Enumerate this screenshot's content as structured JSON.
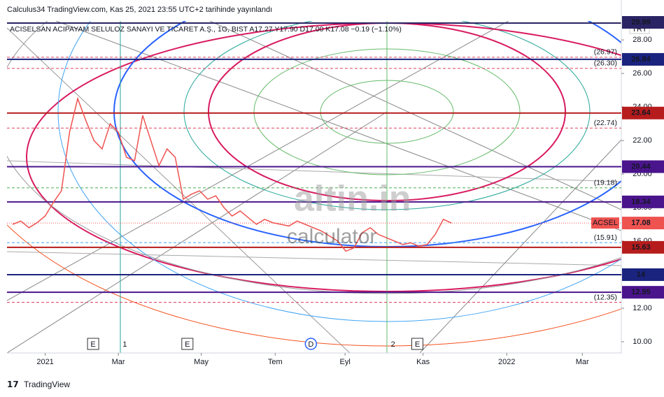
{
  "chart_data": {
    "type": "line",
    "title": "Calculus34 TradingView.com, Kas 25, 2021 23:55 UTC+2 tarihinde yayınlandı",
    "subtitle": "ACISELSAN ACIPAYAM SELULOZ SANAYI VE TICARET A.Ş., 1G, BIST  A17.27 Y17.90 D17.00 K17.08 −0.19 (−1.10%)",
    "currency": "TRY",
    "footer": "TradingView",
    "watermark": [
      "altin.in",
      "calculator"
    ],
    "x": [
      -4,
      -3,
      -2,
      -1,
      0,
      1,
      2,
      3,
      4,
      5,
      6,
      7,
      8,
      9,
      10,
      11,
      12,
      13,
      14,
      15,
      16,
      17,
      18,
      19,
      20,
      21,
      22,
      23,
      24,
      25,
      26,
      27,
      28,
      29,
      30,
      31,
      32,
      33,
      34,
      35,
      36,
      37,
      38,
      39,
      40,
      41,
      42,
      43,
      44,
      45,
      46,
      47,
      48,
      49,
      50
    ],
    "series": [
      {
        "name": "ACSEL",
        "color": "#ef5350",
        "values": [
          17.0,
          17.2,
          16.8,
          17.1,
          17.5,
          18.3,
          19.0,
          22.5,
          24.5,
          23.2,
          22.0,
          21.5,
          23.0,
          22.5,
          21.0,
          20.8,
          23.5,
          22.0,
          20.5,
          21.5,
          21.0,
          18.5,
          18.8,
          19.0,
          18.5,
          18.7,
          18.0,
          17.5,
          17.8,
          17.4,
          17.0,
          17.3,
          17.1,
          17.0,
          16.9,
          17.2,
          17.0,
          16.8,
          16.6,
          16.3,
          16.0,
          15.4,
          15.6,
          16.5,
          16.8,
          16.4,
          16.2,
          16.0,
          15.8,
          15.9,
          15.7,
          15.8,
          16.4,
          17.3,
          17.08
        ]
      }
    ],
    "xlim": [
      -4.7,
      70.9
    ],
    "xticks": [
      {
        "value": 0,
        "label": "2021"
      },
      {
        "value": 9.0,
        "label": "Mar"
      },
      {
        "value": 19.2,
        "label": "May"
      },
      {
        "value": 28.3,
        "label": "Tem"
      },
      {
        "value": 36.9,
        "label": "Eyl"
      },
      {
        "value": 46.5,
        "label": "Kas"
      },
      {
        "value": 56.8,
        "label": "2022"
      },
      {
        "value": 66.1,
        "label": "Mar"
      }
    ],
    "ylim": [
      9.33,
      29.13
    ],
    "yticks": [
      {
        "value": 10,
        "label": "10.00"
      },
      {
        "value": 12,
        "label": "12.00"
      },
      {
        "value": 14,
        "label": "14.00"
      },
      {
        "value": 16,
        "label": "16.00"
      },
      {
        "value": 18,
        "label": "18.00"
      },
      {
        "value": 20,
        "label": "20.00"
      },
      {
        "value": 22,
        "label": "22.00"
      },
      {
        "value": 24,
        "label": "24.00"
      },
      {
        "value": 26,
        "label": "26.00"
      },
      {
        "value": 28,
        "label": "28.00"
      }
    ],
    "levels": [
      {
        "value": 29.99,
        "color": "#2a2464"
      },
      {
        "value": 26.84,
        "color": "#1a237e"
      },
      {
        "value": 23.64,
        "color": "#b71c1c"
      },
      {
        "value": 20.44,
        "color": "#4a148c"
      },
      {
        "value": 18.34,
        "color": "#4a148c"
      },
      {
        "value": 15.63,
        "color": "#b71c1c"
      },
      {
        "value": 14.0,
        "color": "#1a237e"
      },
      {
        "value": 12.95,
        "color": "#4a148c"
      }
    ],
    "dashed_levels": [
      {
        "value": 26.97,
        "label": "(26.97)",
        "color": "#e0405e"
      },
      {
        "value": 26.3,
        "label": "(26.30)",
        "color": "#e0405e"
      },
      {
        "value": 22.74,
        "label": "(22.74)",
        "color": "#e0405e"
      },
      {
        "value": 19.18,
        "label": "(19.18)",
        "color": "#4caf50"
      },
      {
        "value": 15.91,
        "label": "(15.91)",
        "color": "#42a5f5"
      },
      {
        "value": 12.35,
        "label": "(12.35)",
        "color": "#e0405e"
      }
    ],
    "events": [
      {
        "label": "E",
        "x": 5.9
      },
      {
        "label": "1",
        "x": 9.8
      },
      {
        "label": "E",
        "x": 17.5
      },
      {
        "label": "D",
        "x": 32.7
      },
      {
        "label": "2",
        "x": 42.8
      },
      {
        "label": "E",
        "x": 45.8
      }
    ]
  }
}
